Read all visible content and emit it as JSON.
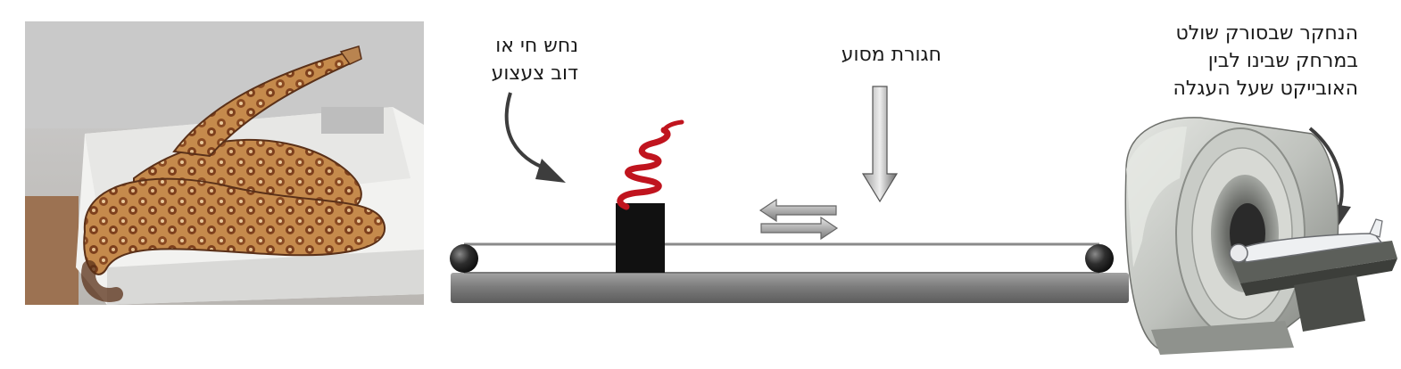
{
  "labels": {
    "snake": {
      "lines": [
        "נחש חי או",
        "דוב צעצוע"
      ]
    },
    "belt": {
      "lines": [
        "חגורת מסוע"
      ]
    },
    "subject": {
      "lines": [
        "הנחקר שבסורק שולט",
        "במרחק שבינו לבין",
        "האובייקט שעל העגלה"
      ]
    }
  },
  "colors": {
    "rail": "#7a7a7a",
    "belt_line": "#8a8a8a",
    "object_box": "#111111",
    "snake_model": "#c0141e",
    "arrow_gray": "#6f6f6f",
    "scanner_body": "#b9bcb7",
    "photo_snake": "#b0743c"
  },
  "icons": [
    "snake-photo",
    "toy-snake-icon",
    "mri-scanner-icon",
    "curved-arrow-icon",
    "down-arrow-icon",
    "bidirectional-arrows-icon"
  ]
}
